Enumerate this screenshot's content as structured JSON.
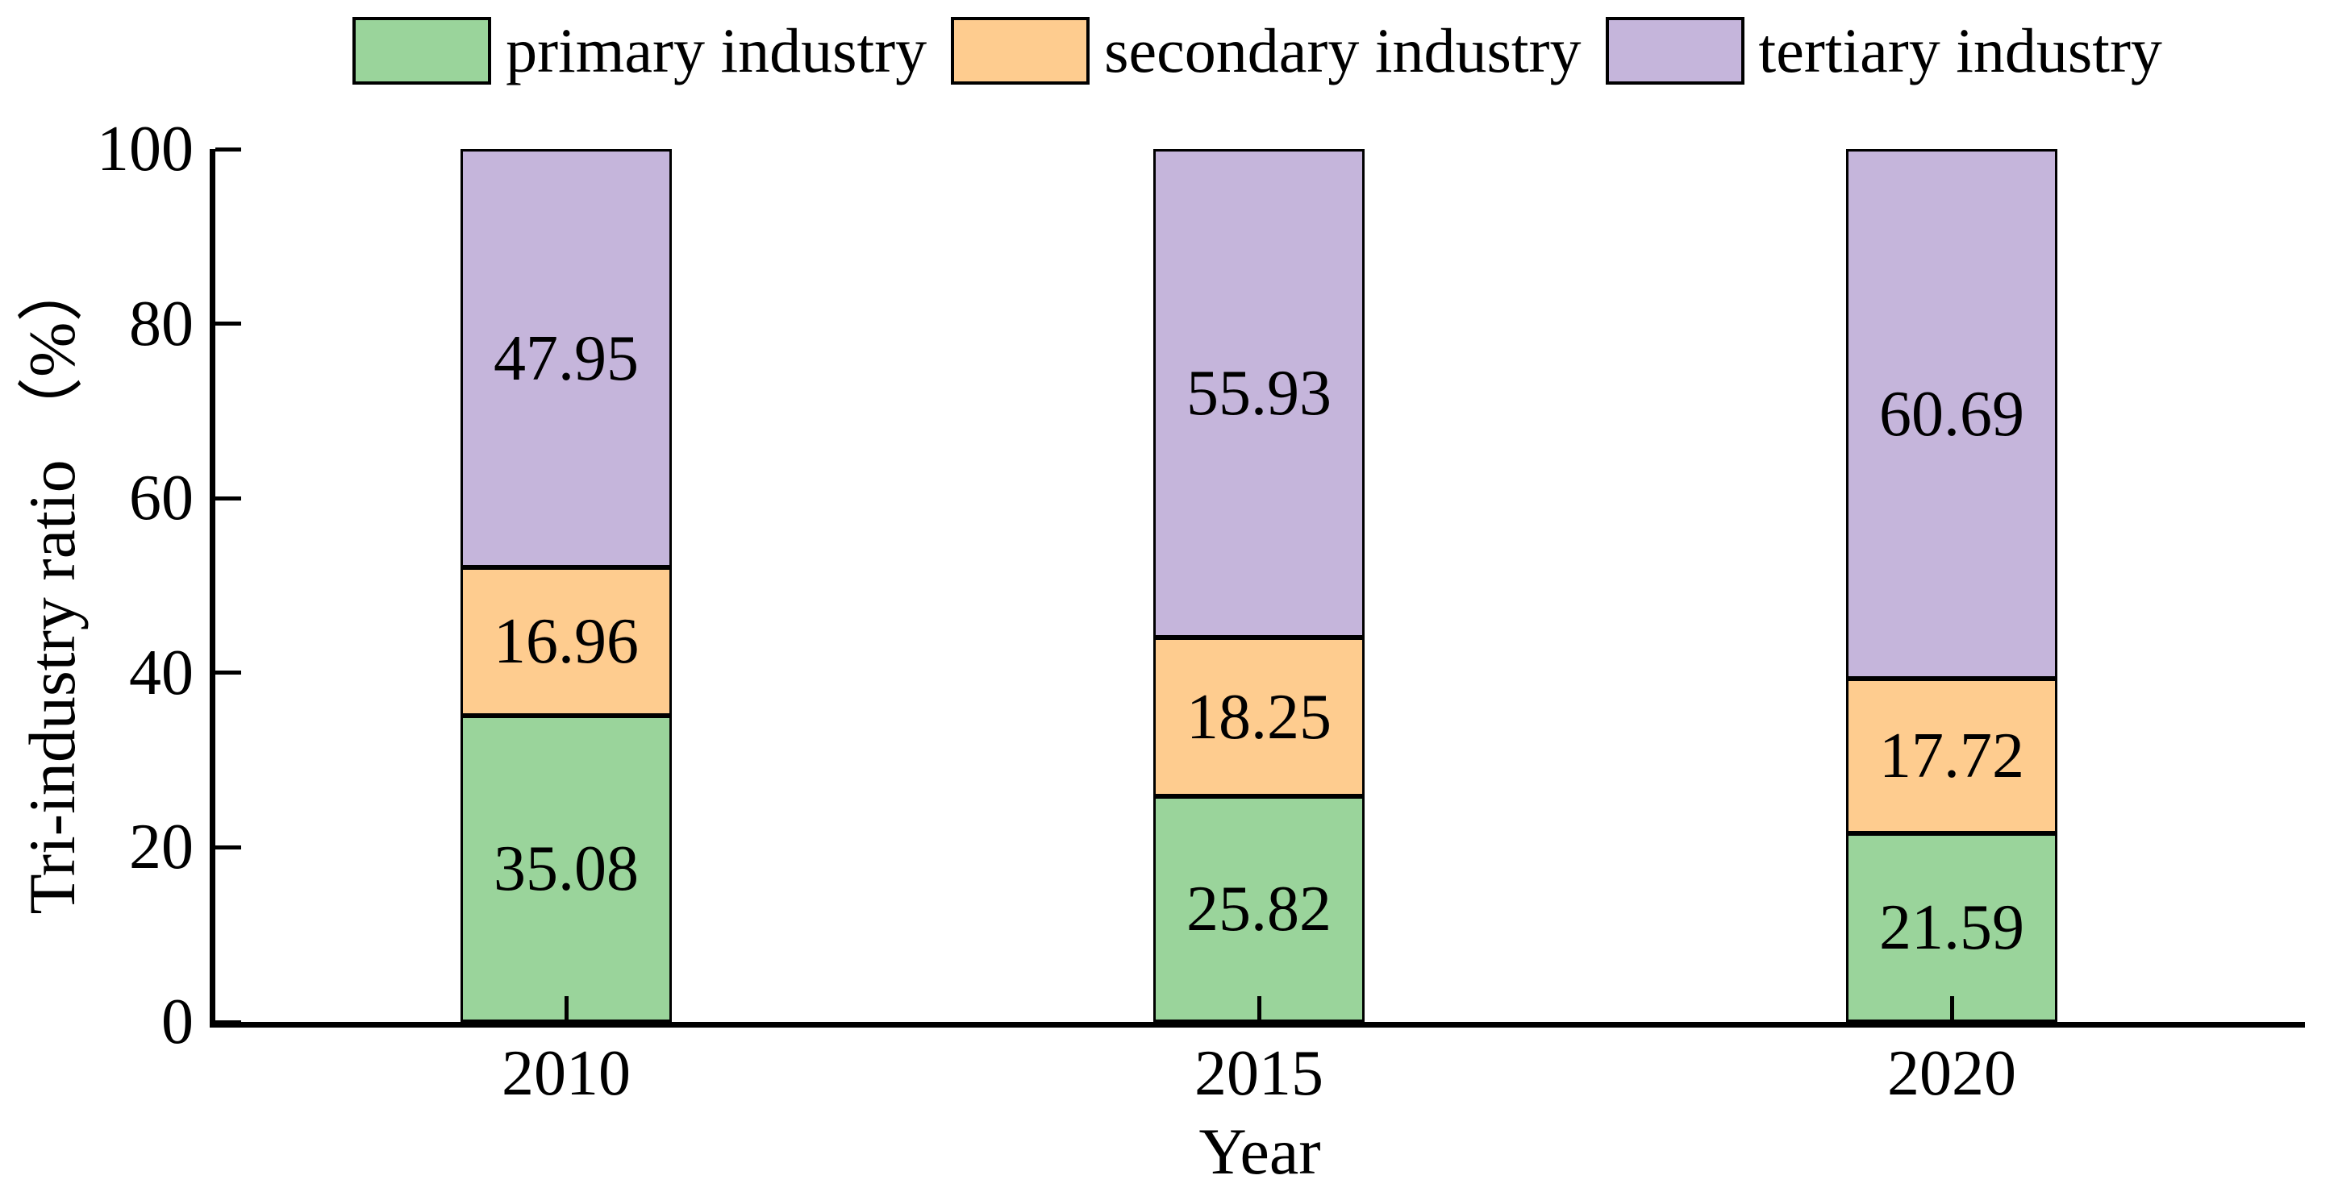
{
  "chart_data": {
    "type": "bar",
    "stacked": true,
    "title": "",
    "xlabel": "Year",
    "ylabel": "Tri-industry ratio （%）",
    "categories": [
      "2010",
      "2015",
      "2020"
    ],
    "series": [
      {
        "name": "primary industry",
        "color": "#9AD49B",
        "values": [
          35.08,
          25.82,
          21.59
        ]
      },
      {
        "name": "secondary industry",
        "color": "#FECC8F",
        "values": [
          16.96,
          18.25,
          17.72
        ]
      },
      {
        "name": "tertiary industry",
        "color": "#C5B5DB",
        "values": [
          47.95,
          55.93,
          60.69
        ]
      }
    ],
    "ylim": [
      0,
      100
    ],
    "yticks": [
      0,
      20,
      40,
      60,
      80,
      100
    ],
    "bar_outline_color": "#000000",
    "axis_color": "#000000",
    "legend_position": "top-center",
    "grid": false,
    "value_labels": "inside-center, 2 decimals"
  }
}
